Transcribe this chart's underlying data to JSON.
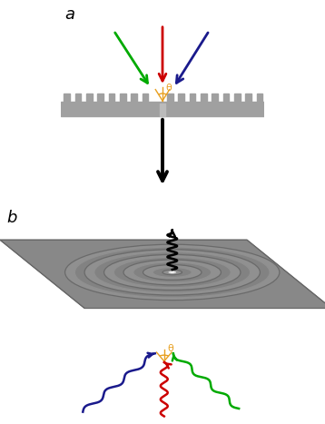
{
  "fig_width": 3.58,
  "fig_height": 4.67,
  "dpi": 100,
  "bg_color": "#ffffff",
  "panel_a_label": "a",
  "panel_b_label": "b",
  "grating_color": "#a0a0a0",
  "red_color": "#cc0000",
  "green_color": "#00aa00",
  "blue_color": "#1a1a8c",
  "orange_color": "#e8a020",
  "theta_label": "θ",
  "surface_color": "#888888",
  "surface_edge": "#666666"
}
